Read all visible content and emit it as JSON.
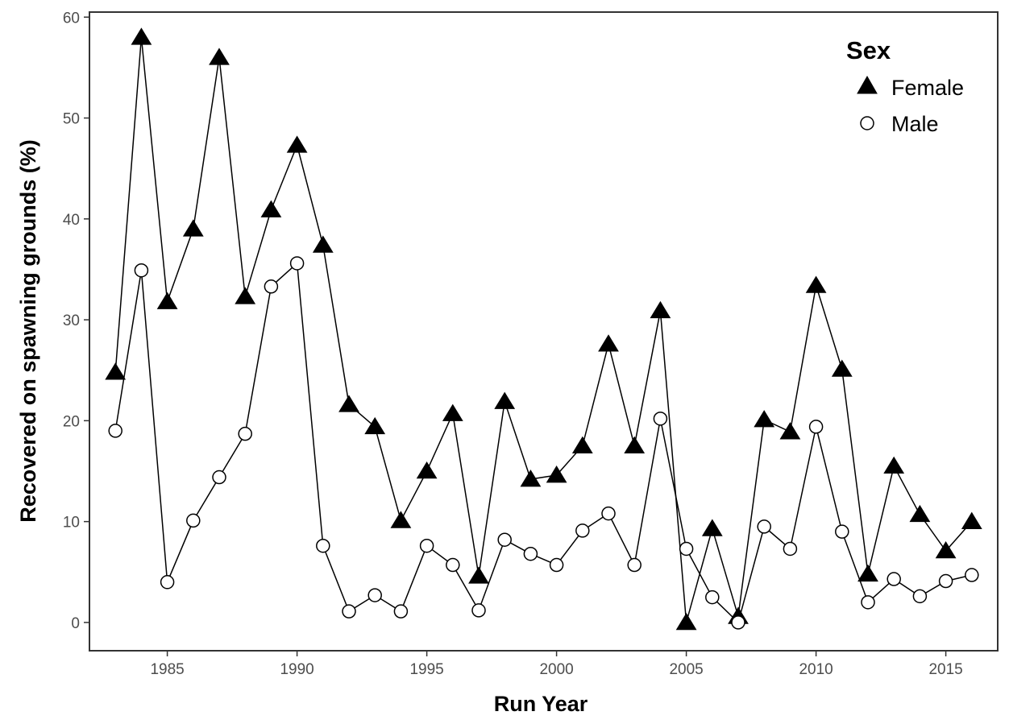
{
  "chart_data": {
    "type": "line",
    "xlabel": "Run Year",
    "ylabel": "Recovered on spawning grounds (%)",
    "xlim": [
      1982,
      2017
    ],
    "ylim": [
      -2.8,
      60.5
    ],
    "x_ticks": [
      1985,
      1990,
      1995,
      2000,
      2005,
      2010,
      2015
    ],
    "y_ticks": [
      0,
      10,
      20,
      30,
      40,
      50,
      60
    ],
    "grid": false,
    "legend": {
      "title": "Sex",
      "position": "top-right"
    },
    "x": [
      1983,
      1984,
      1985,
      1986,
      1987,
      1988,
      1989,
      1990,
      1991,
      1992,
      1993,
      1994,
      1995,
      1996,
      1997,
      1998,
      1999,
      2000,
      2001,
      2002,
      2003,
      2004,
      2005,
      2006,
      2007,
      2008,
      2009,
      2010,
      2011,
      2012,
      2013,
      2014,
      2015,
      2016
    ],
    "series": [
      {
        "name": "Female",
        "marker": "filled-triangle",
        "values": [
          24.8,
          58.0,
          31.8,
          39.0,
          56.0,
          32.3,
          40.9,
          47.3,
          37.4,
          21.6,
          19.4,
          10.1,
          15.0,
          20.7,
          4.6,
          21.9,
          14.2,
          14.6,
          17.5,
          27.6,
          17.5,
          30.9,
          0.0,
          9.3,
          0.6,
          20.1,
          18.9,
          33.4,
          25.1,
          4.8,
          15.5,
          10.7,
          7.1,
          10.0
        ]
      },
      {
        "name": "Male",
        "marker": "open-circle",
        "values": [
          19.0,
          34.9,
          4.0,
          10.1,
          14.4,
          18.7,
          33.3,
          35.6,
          7.6,
          1.1,
          2.7,
          1.1,
          7.6,
          5.7,
          1.2,
          8.2,
          6.8,
          5.7,
          9.1,
          10.8,
          5.7,
          20.2,
          7.3,
          2.5,
          0.0,
          9.5,
          7.3,
          19.4,
          9.0,
          2.0,
          4.3,
          2.6,
          4.1,
          4.7
        ]
      }
    ]
  }
}
